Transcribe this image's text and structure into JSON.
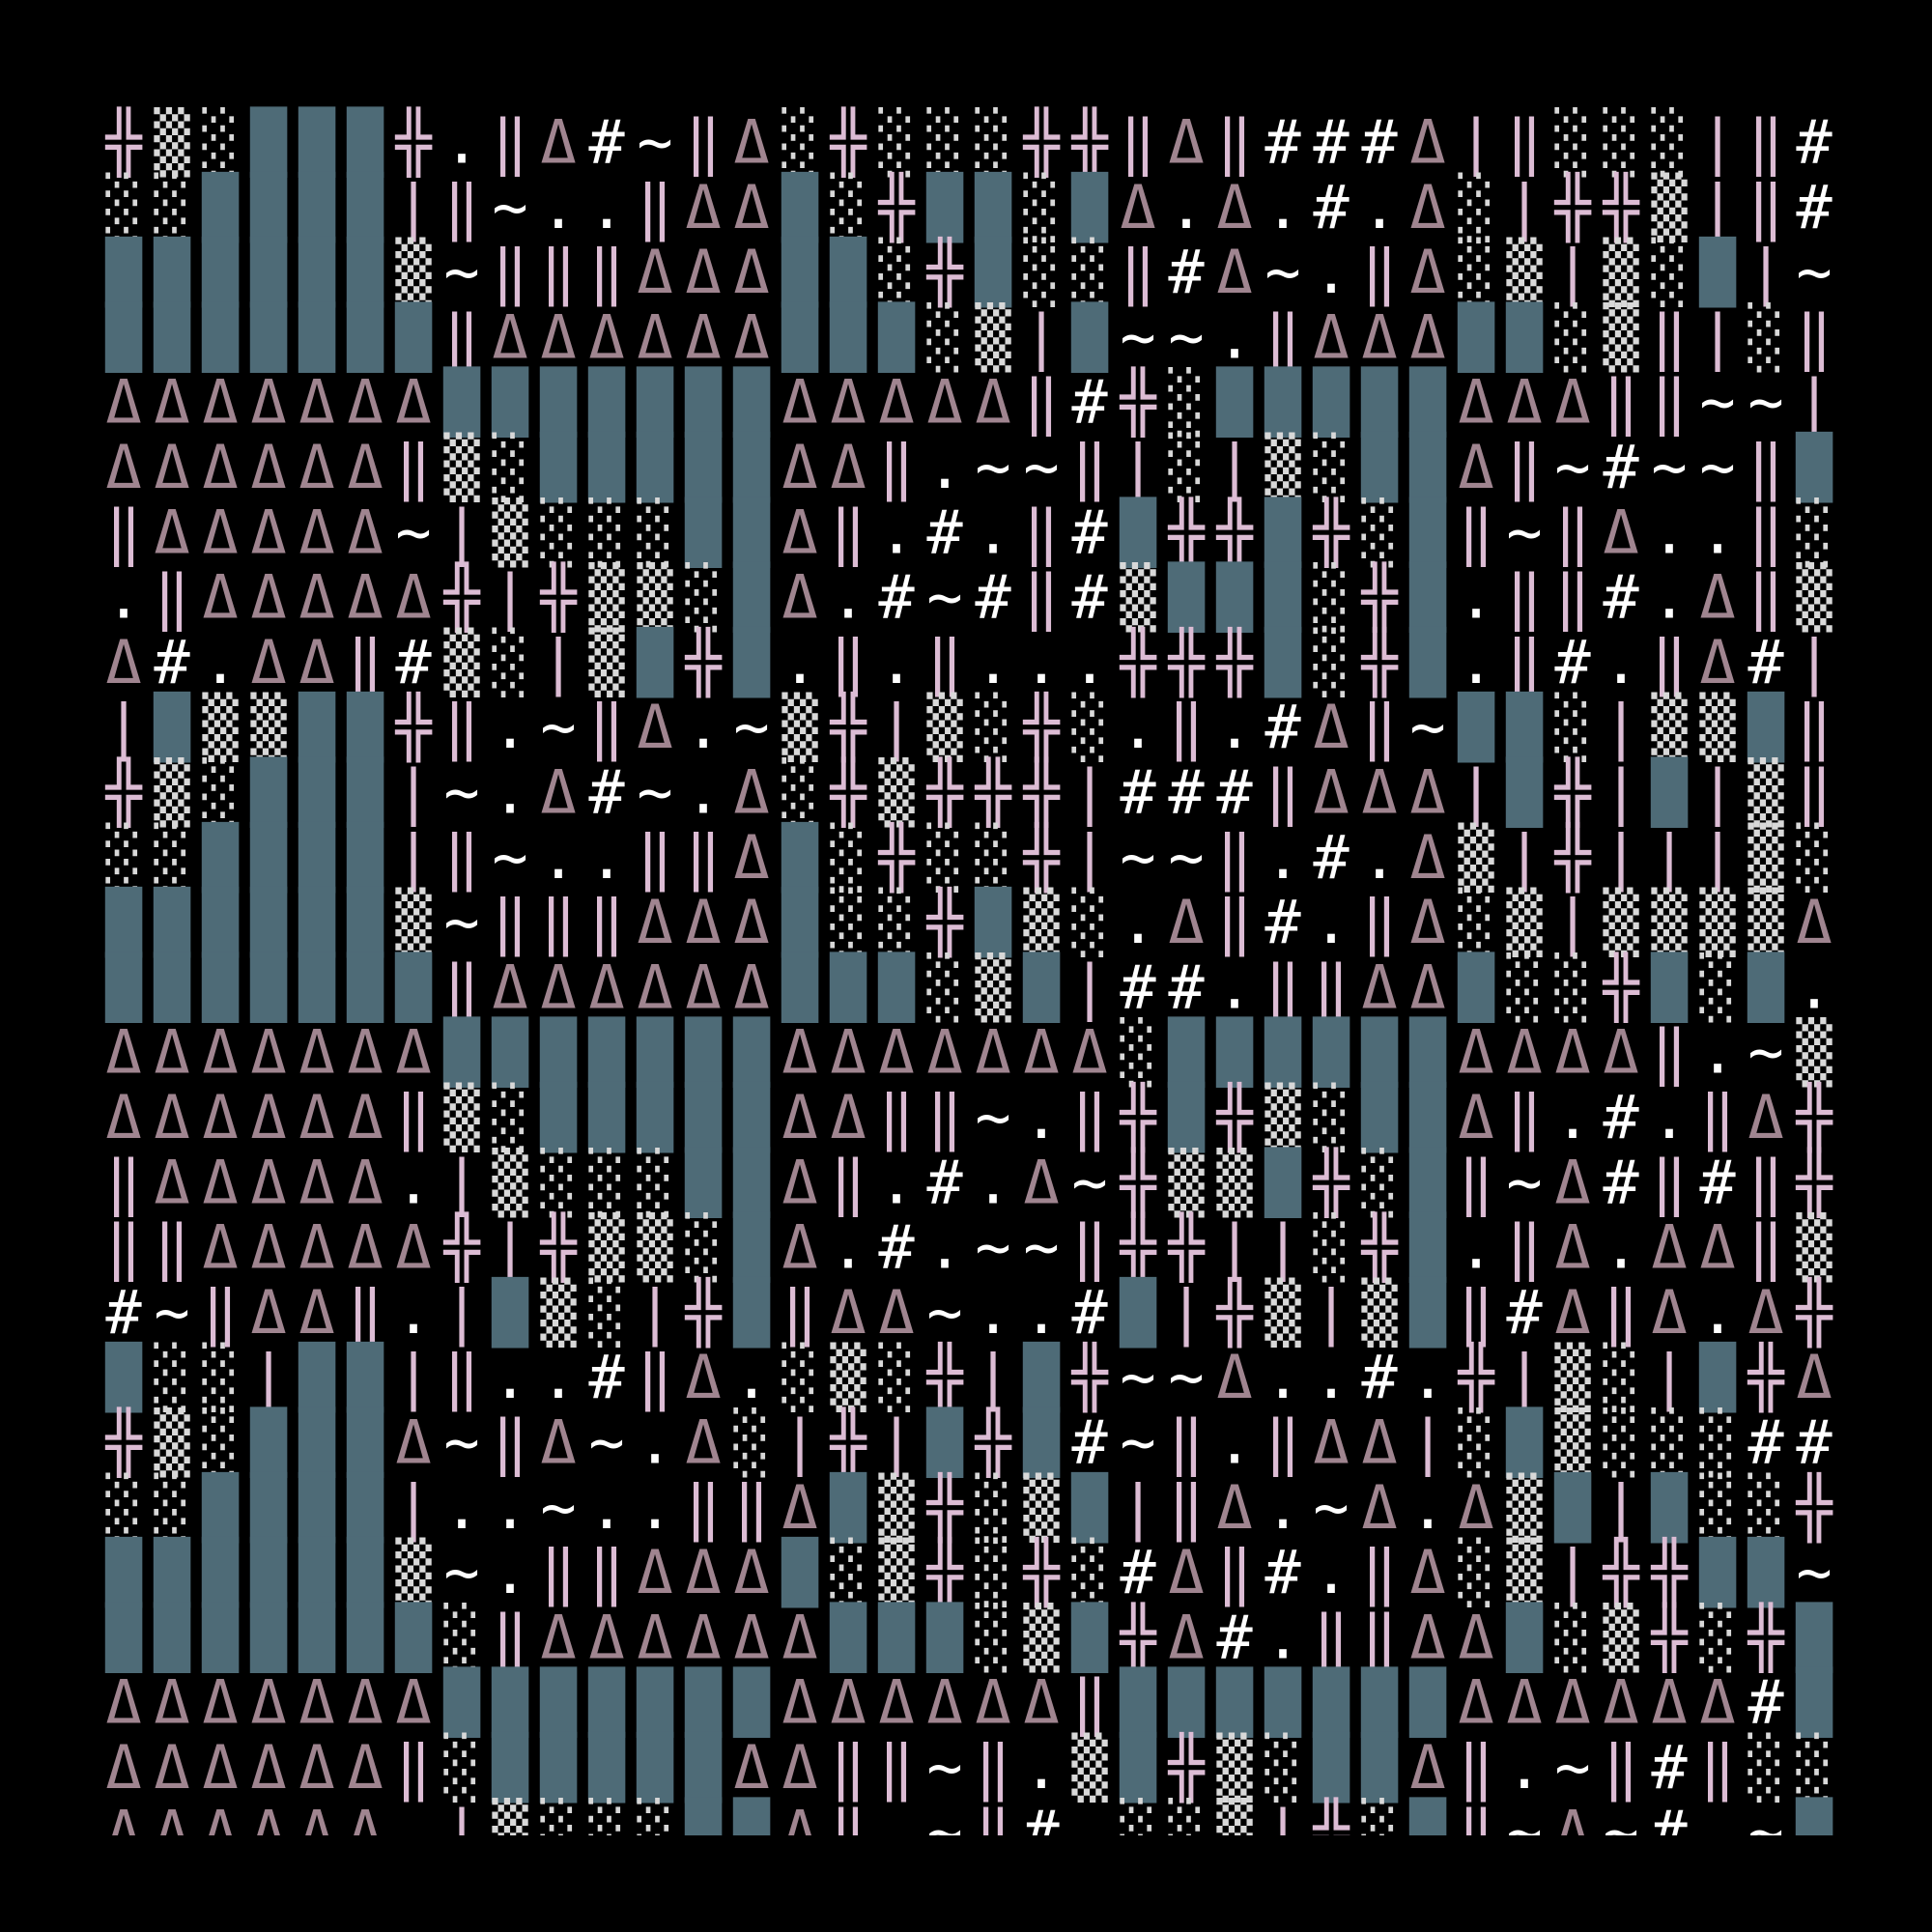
{
  "rows": [
    "╬▒░███╬.‖Δ#~‖Δ░╬░░░╬╬‖Δ‖###Δ|‖░░░|‖#.",
    "░░████|‖~..‖ΔΔ█░╬██░█Δ.Δ.#.Δ░|╬╬▒|‖#",
    "██████▒~‖‖‖ΔΔΔ██░╬█░░‖#Δ~.‖Δ░▒|▒░█|~",
    "███████‖ΔΔΔΔΔΔ███░▒|█~~.‖ΔΔΔ██░▒‖|░‖Δ",
    "ΔΔΔΔΔΔΔ███████ΔΔΔΔΔ‖#╬░█████ΔΔΔ‖‖~~|",
    "ΔΔΔΔΔΔ‖▒░█████ΔΔ‖.~~‖|░|▒░██Δ‖~#~~‖█",
    "‖ΔΔΔΔΔ~|▒░░░██Δ‖.#.‖#█╬╬█╬░█‖~‖Δ..‖░",
    ".‖ΔΔΔΔΔ╬|╬▒▒░█Δ.#~#‖#▒███░╬█.‖‖#.Δ‖▒",
    "Δ#.ΔΔ‖#▒░|▒█╬█.‖.‖...╬╬╬█░╬█.‖#.‖Δ#|",
    "|█▒▒██╬‖.~‖Δ.~▒╬|▒░╬░.‖.#Δ‖~██░|▒▒█‖",
    "╬▒░███|~.Δ#~.Δ░╬▒╬╬╬|###‖ΔΔΔ|█╬|█|▒‖",
    "░░████|‖~..‖‖Δ█░╬░░╬|~~‖.#.Δ▒|╬|||▒░~",
    "██████▒~‖‖‖ΔΔΔ█░░╬█▒░.Δ‖#.‖Δ░▒|▒▒▒▒Δ",
    "███████‖ΔΔΔΔΔΔ███░▒█|##.‖‖ΔΔ█░░╬█░█.",
    "ΔΔΔΔΔΔΔ███████ΔΔΔΔΔΔΔ░██████ΔΔΔΔ‖.~▒",
    "ΔΔΔΔΔΔ‖▒░█████ΔΔ‖‖~.‖╬█╬▒░██Δ‖.#.‖Δ╬",
    "‖ΔΔΔΔΔ.|▒░░░██Δ‖.#.Δ~╬▒▒█╬░█‖~Δ#‖#‖╬",
    "‖‖ΔΔΔΔΔ╬|╬▒▒░█Δ.#.~~‖╬╬||░╬█.‖Δ.ΔΔ‖▒",
    "#~‖ΔΔ‖.|█▒░|╬█‖ΔΔ~..#█|╬▒|▒█‖#Δ‖Δ.Δ╬",
    "█░░|██|‖..#‖Δ.░▒░╬|█╬~~Δ..#.╬|▒░|█╬Δ",
    "╬▒░███Δ~‖Δ~.Δ░|╬|█╬█#~‖.‖ΔΔ|░█▒░░░##",
    "░░████|..~..‖‖Δ█▒╬░▒█|‖Δ.~Δ.Δ▒█|█░░╬",
    "██████▒~.‖‖ΔΔΔ█░▒╬░╬░#Δ‖#.‖Δ░▒|╬╬██~",
    "███████░‖ΔΔΔΔΔΔ███░▒█╬Δ#.‖‖ΔΔ█░▒╬░╬█#",
    "ΔΔΔΔΔΔΔ███████ΔΔΔΔΔΔ‖███████ΔΔΔΔΔΔ#██",
    "ΔΔΔΔΔΔ‖░█████ΔΔ‖‖~‖.▒█╬▒░██Δ‖.~‖#‖░░",
    "ΔΔΔΔΔΔ.|▒░░░██Δ‖.~‖#.░░▒|╬░█‖~Δ~#.~█"
  ]
}
